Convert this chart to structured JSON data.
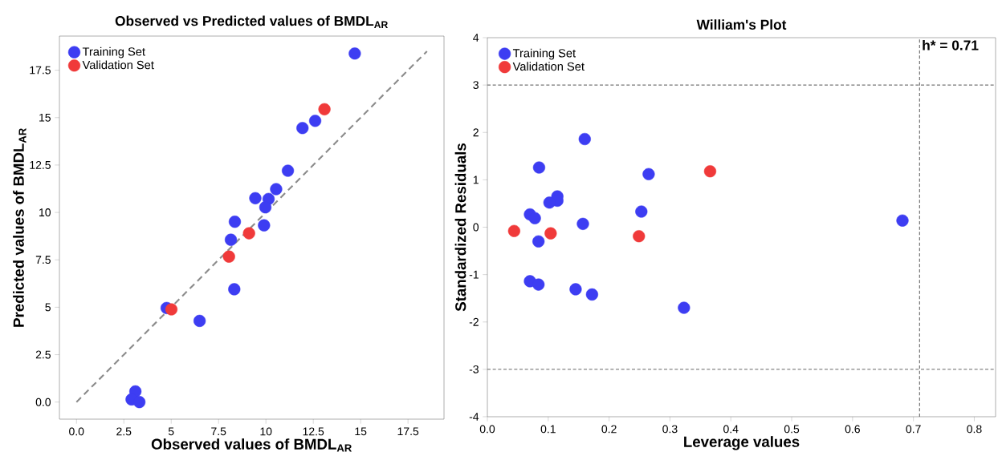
{
  "chart_data": [
    {
      "type": "scatter",
      "title": "Observed vs Predicted values of BMDL$_{AR}$",
      "xlabel": "Observed values of BMDL$_{AR}$",
      "ylabel": "Predicted values of BMDL$_{AR}$",
      "xlim": [
        -0.9,
        19.4
      ],
      "ylim": [
        -0.9,
        19.3
      ],
      "xticks": [
        {
          "value": 0,
          "label": "0.0"
        },
        2.5,
        5,
        7.5,
        10,
        12.5,
        15,
        17.5
      ],
      "yticks": [
        {
          "value": 0,
          "label": "0.0"
        },
        2.5,
        5,
        7.5,
        10,
        12.5,
        15,
        17.5
      ],
      "grid": false,
      "legend": "top left",
      "series": [
        {
          "name": "Training Set",
          "color": "#3d3df2",
          "marker": "circle",
          "x": [
            14.69,
            11.93,
            12.6,
            11.16,
            10.54,
            9.44,
            10.14,
            9.97,
            8.36,
            9.9,
            8.15,
            8.33,
            4.76,
            6.5,
            3.11,
            2.91,
            3.32
          ],
          "values": [
            18.38,
            14.45,
            14.83,
            12.2,
            11.23,
            10.75,
            10.71,
            10.27,
            9.51,
            9.32,
            8.56,
            5.95,
            4.96,
            4.28,
            0.56,
            0.14,
            0.0
          ]
        },
        {
          "name": "Validation Set",
          "color": "#f03a3a",
          "marker": "circle",
          "x": [
            13.09,
            9.11,
            8.05,
            5.01
          ],
          "values": [
            15.44,
            8.9,
            7.67,
            4.89
          ]
        },
        {
          "type": "line",
          "color": "#8c8c8c",
          "line_style": "dashed",
          "marker": "none",
          "x": [
            0,
            18.5
          ],
          "values": [
            0,
            18.5
          ]
        }
      ]
    },
    {
      "type": "scatter",
      "title": "William's Plot",
      "xlabel": "Leverage values",
      "ylabel": "Standardized Residuals",
      "xlim": [
        0,
        0.835
      ],
      "ylim": [
        -4,
        4
      ],
      "xticks": [
        {
          "value": 0,
          "label": "0.0"
        },
        0.1,
        0.2,
        0.3,
        0.4,
        0.5,
        0.6,
        0.7,
        0.8
      ],
      "yticks": [
        -4,
        -3,
        -2,
        -1,
        0,
        1,
        2,
        3,
        4
      ],
      "grid": false,
      "legend": "top left",
      "ref_lines": [
        {
          "axis": "y",
          "value": 3,
          "color": "#777777",
          "line_style": "dashed"
        },
        {
          "axis": "y",
          "value": -3,
          "color": "#777777",
          "line_style": "dashed"
        },
        {
          "axis": "x",
          "value": 0.71,
          "label": "h* = 0.71",
          "color": "#555555",
          "line_style": "dashed"
        }
      ],
      "series": [
        {
          "name": "Training Set",
          "color": "#3d3df2",
          "marker": "circle",
          "x": [
            0.16,
            0.085,
            0.265,
            0.115,
            0.115,
            0.102,
            0.07,
            0.078,
            0.157,
            0.253,
            0.682,
            0.084,
            0.07,
            0.084,
            0.145,
            0.172,
            0.323
          ],
          "values": [
            1.86,
            1.26,
            1.12,
            0.65,
            0.56,
            0.52,
            0.27,
            0.19,
            0.07,
            0.33,
            0.14,
            -0.3,
            -1.14,
            -1.21,
            -1.31,
            -1.42,
            -1.7
          ]
        },
        {
          "name": "Validation Set",
          "color": "#f03a3a",
          "marker": "circle",
          "x": [
            0.366,
            0.044,
            0.104,
            0.249
          ],
          "values": [
            1.18,
            -0.08,
            -0.13,
            -0.19
          ]
        }
      ]
    }
  ]
}
